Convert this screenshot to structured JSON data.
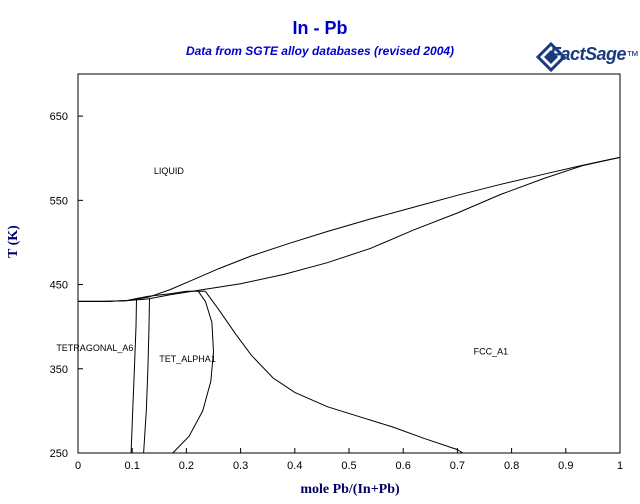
{
  "chart_data": {
    "type": "line",
    "title": "In - Pb",
    "subtitle": "Data from SGTE alloy databases (revised 2004)",
    "logo": {
      "brand": "FactSage",
      "trademark": "™"
    },
    "xlabel": "mole Pb/(In+Pb)",
    "ylabel": "T (K)",
    "xlim": [
      0,
      1
    ],
    "ylim": [
      250,
      700
    ],
    "xticks": [
      "0",
      "0.1",
      "0.2",
      "0.3",
      "0.4",
      "0.5",
      "0.6",
      "0.7",
      "0.8",
      "0.9",
      "1"
    ],
    "xtick_values": [
      0,
      0.1,
      0.2,
      0.3,
      0.4,
      0.5,
      0.6,
      0.7,
      0.8,
      0.9,
      1.0
    ],
    "yticks": [
      "250",
      "350",
      "450",
      "550",
      "650"
    ],
    "ytick_values": [
      250,
      350,
      450,
      550,
      650
    ],
    "line_color": "#000000",
    "title_color": "#0000cc",
    "series": [
      {
        "x": [
          0.0,
          0.05,
          0.09,
          0.13,
          0.17,
          0.21,
          0.26,
          0.32,
          0.39,
          0.46,
          0.54,
          0.62,
          0.7,
          0.78,
          0.86,
          0.92,
          0.97,
          1.0
        ],
        "y": [
          430,
          430,
          431,
          435,
          444,
          455,
          469,
          484,
          499,
          513,
          528,
          542,
          556,
          569,
          581,
          590,
          597,
          601
        ]
      },
      {
        "x": [
          0.0,
          0.05,
          0.09,
          0.13,
          0.17,
          0.22,
          0.3,
          0.38,
          0.46,
          0.54,
          0.62,
          0.7,
          0.78,
          0.86,
          0.93,
          1.0
        ],
        "y": [
          430,
          430,
          431,
          433,
          438,
          443,
          451,
          462,
          476,
          493,
          515,
          535,
          557,
          576,
          591,
          601
        ]
      },
      {
        "x": [
          0.0,
          0.05,
          0.09,
          0.105,
          0.13,
          0.17,
          0.2,
          0.235
        ],
        "y": [
          430,
          430,
          431,
          433,
          436,
          439,
          442,
          442
        ]
      },
      {
        "x": [
          0.108,
          0.107,
          0.104,
          0.101,
          0.098
        ],
        "y": [
          433,
          400,
          350,
          300,
          250
        ]
      },
      {
        "x": [
          0.132,
          0.131,
          0.129,
          0.126,
          0.121
        ],
        "y": [
          433,
          400,
          350,
          300,
          250
        ]
      },
      {
        "x": [
          0.222,
          0.235,
          0.247,
          0.25,
          0.245,
          0.23,
          0.205,
          0.175
        ],
        "y": [
          442,
          430,
          405,
          370,
          335,
          300,
          270,
          250
        ]
      },
      {
        "x": [
          0.235,
          0.26,
          0.29,
          0.32,
          0.36,
          0.4,
          0.46,
          0.52,
          0.58,
          0.64,
          0.7,
          0.71
        ],
        "y": [
          442,
          420,
          392,
          366,
          339,
          322,
          305,
          293,
          281,
          267,
          254,
          250
        ]
      }
    ],
    "region_labels": [
      {
        "text": "LIQUID",
        "x": 0.14,
        "y": 581
      },
      {
        "text": "TETRAGONAL_A6",
        "x": -0.04,
        "y": 371
      },
      {
        "text": "TET_ALPHA1",
        "x": 0.15,
        "y": 358
      },
      {
        "text": "FCC_A1",
        "x": 0.73,
        "y": 367
      }
    ]
  }
}
